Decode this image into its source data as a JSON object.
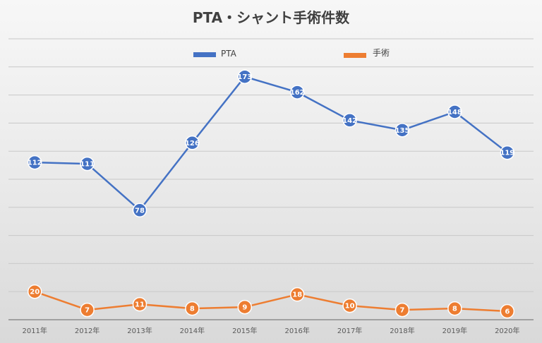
{
  "chart_data": {
    "type": "line",
    "title": "PTA・シャント手術件数",
    "categories": [
      "2011年",
      "2012年",
      "2013年",
      "2014年",
      "2015年",
      "2016年",
      "2017年",
      "2018年",
      "2019年",
      "2020年"
    ],
    "series": [
      {
        "name": "PTA",
        "color": "#4472c4",
        "values": [
          112,
          111,
          78,
          126,
          173,
          162,
          142,
          135,
          148,
          119
        ]
      },
      {
        "name": "手術",
        "color": "#ed7d31",
        "values": [
          20,
          7,
          11,
          8,
          9,
          18,
          10,
          7,
          8,
          6
        ]
      }
    ],
    "ylim": [
      0,
      200
    ],
    "grid": true,
    "legend": "top"
  }
}
